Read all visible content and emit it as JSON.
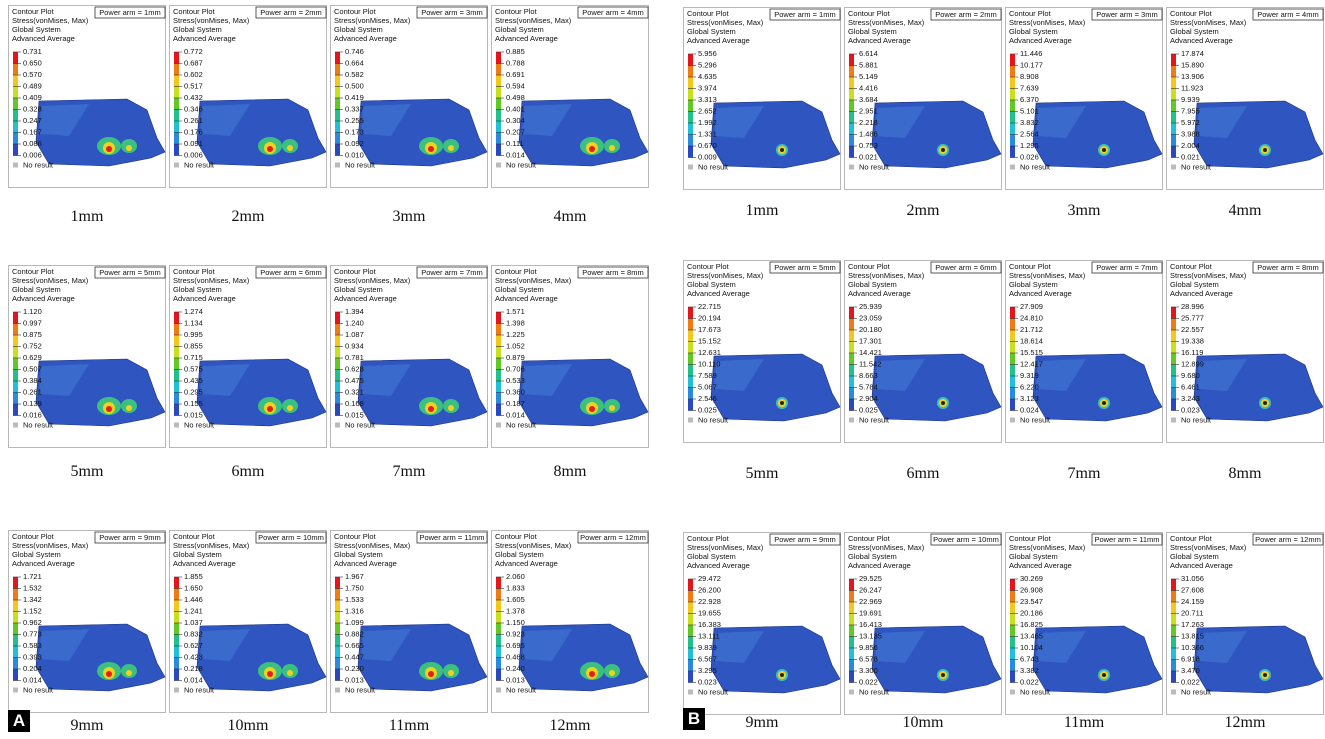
{
  "panels": [
    {
      "label": "A",
      "plots": [
        {
          "title": "Contour Plot",
          "quantity": "Stress(vonMises, Max)",
          "system": "Global System",
          "average": "Advanced Average",
          "power_arm": "Power arm = 1mm",
          "legend": [
            "0.731",
            "0.650",
            "0.570",
            "0.489",
            "0.409",
            "0.328",
            "0.247",
            "0.167",
            "0.086",
            "0.006"
          ],
          "no_result": "No result",
          "caption": "1mm"
        },
        {
          "title": "Contour Plot",
          "quantity": "Stress(vonMises, Max)",
          "system": "Global System",
          "average": "Advanced Average",
          "power_arm": "Power arm = 2mm",
          "legend": [
            "0.772",
            "0.687",
            "0.602",
            "0.517",
            "0.432",
            "0.346",
            "0.261",
            "0.176",
            "0.091",
            "0.006"
          ],
          "no_result": "No result",
          "caption": "2mm"
        },
        {
          "title": "Contour Plot",
          "quantity": "Stress(vonMises, Max)",
          "system": "Global System",
          "average": "Advanced Average",
          "power_arm": "Power arm = 3mm",
          "legend": [
            "0.746",
            "0.664",
            "0.582",
            "0.500",
            "0.419",
            "0.337",
            "0.255",
            "0.173",
            "0.092",
            "0.010"
          ],
          "no_result": "No result",
          "caption": "3mm"
        },
        {
          "title": "Contour Plot",
          "quantity": "Stress(vonMises, Max)",
          "system": "Global System",
          "average": "Advanced Average",
          "power_arm": "Power arm = 4mm",
          "legend": [
            "0.885",
            "0.788",
            "0.691",
            "0.594",
            "0.498",
            "0.401",
            "0.304",
            "0.207",
            "0.111",
            "0.014"
          ],
          "no_result": "No result",
          "caption": "4mm"
        },
        {
          "title": "Contour Plot",
          "quantity": "Stress(vonMises, Max)",
          "system": "Global System",
          "average": "Advanced Average",
          "power_arm": "Power arm = 5mm",
          "legend": [
            "1.120",
            "0.997",
            "0.875",
            "0.752",
            "0.629",
            "0.507",
            "0.384",
            "0.261",
            "0.139",
            "0.016"
          ],
          "no_result": "No result",
          "caption": "5mm"
        },
        {
          "title": "Contour Plot",
          "quantity": "Stress(vonMises, Max)",
          "system": "Global System",
          "average": "Advanced Average",
          "power_arm": "Power arm = 6mm",
          "legend": [
            "1.274",
            "1.134",
            "0.995",
            "0.855",
            "0.715",
            "0.575",
            "0.435",
            "0.295",
            "0.155",
            "0.015"
          ],
          "no_result": "No result",
          "caption": "6mm"
        },
        {
          "title": "Contour Plot",
          "quantity": "Stress(vonMises, Max)",
          "system": "Global System",
          "average": "Advanced Average",
          "power_arm": "Power arm = 7mm",
          "legend": [
            "1.394",
            "1.240",
            "1.087",
            "0.934",
            "0.781",
            "0.628",
            "0.475",
            "0.321",
            "0.168",
            "0.015"
          ],
          "no_result": "No result",
          "caption": "7mm"
        },
        {
          "title": "Contour Plot",
          "quantity": "Stress(vonMises, Max)",
          "system": "Global System",
          "average": "Advanced Average",
          "power_arm": "Power arm = 8mm",
          "legend": [
            "1.571",
            "1.398",
            "1.225",
            "1.052",
            "0.879",
            "0.706",
            "0.533",
            "0.360",
            "0.187",
            "0.014"
          ],
          "no_result": "No result",
          "caption": "8mm"
        },
        {
          "title": "Contour Plot",
          "quantity": "Stress(vonMises, Max)",
          "system": "Global System",
          "average": "Advanced Average",
          "power_arm": "Power arm = 9mm",
          "legend": [
            "1.721",
            "1.532",
            "1.342",
            "1.152",
            "0.962",
            "0.773",
            "0.583",
            "0.393",
            "0.204",
            "0.014"
          ],
          "no_result": "No result",
          "caption": "9mm"
        },
        {
          "title": "Contour Plot",
          "quantity": "Stress(vonMises, Max)",
          "system": "Global System",
          "average": "Advanced Average",
          "power_arm": "Power arm = 10mm",
          "legend": [
            "1.855",
            "1.650",
            "1.446",
            "1.241",
            "1.037",
            "0.832",
            "0.627",
            "0.423",
            "0.218",
            "0.014"
          ],
          "no_result": "No result",
          "caption": "10mm"
        },
        {
          "title": "Contour Plot",
          "quantity": "Stress(vonMises, Max)",
          "system": "Global System",
          "average": "Advanced Average",
          "power_arm": "Power arm = 11mm",
          "legend": [
            "1.967",
            "1.750",
            "1.533",
            "1.316",
            "1.099",
            "0.882",
            "0.665",
            "0.447",
            "0.230",
            "0.013"
          ],
          "no_result": "No result",
          "caption": "11mm"
        },
        {
          "title": "Contour Plot",
          "quantity": "Stress(vonMises, Max)",
          "system": "Global System",
          "average": "Advanced Average",
          "power_arm": "Power arm = 12mm",
          "legend": [
            "2.060",
            "1.833",
            "1.605",
            "1.378",
            "1.150",
            "0.923",
            "0.695",
            "0.468",
            "0.240",
            "0.013"
          ],
          "no_result": "No result",
          "caption": "12mm"
        }
      ]
    },
    {
      "label": "B",
      "plots": [
        {
          "title": "Contour Plot",
          "quantity": "Stress(vonMises, Max)",
          "system": "Global System",
          "average": "Advanced Average",
          "power_arm": "Power arm = 1mm",
          "legend": [
            "5.956",
            "5.296",
            "4.635",
            "3.974",
            "3.313",
            "2.652",
            "1.992",
            "1.331",
            "0.670",
            "0.009"
          ],
          "no_result": "No result",
          "caption": "1mm"
        },
        {
          "title": "Contour Plot",
          "quantity": "Stress(vonMises, Max)",
          "system": "Global System",
          "average": "Advanced Average",
          "power_arm": "Power arm = 2mm",
          "legend": [
            "6.614",
            "5.881",
            "5.149",
            "4.416",
            "3.684",
            "2.951",
            "2.218",
            "1.486",
            "0.753",
            "0.021"
          ],
          "no_result": "No result",
          "caption": "2mm"
        },
        {
          "title": "Contour Plot",
          "quantity": "Stress(vonMises, Max)",
          "system": "Global System",
          "average": "Advanced Average",
          "power_arm": "Power arm = 3mm",
          "legend": [
            "11.446",
            "10.177",
            "8.908",
            "7.639",
            "6.370",
            "5.101",
            "3.832",
            "2.564",
            "1.295",
            "0.026"
          ],
          "no_result": "No result",
          "caption": "3mm"
        },
        {
          "title": "Contour Plot",
          "quantity": "Stress(vonMises, Max)",
          "system": "Global System",
          "average": "Advanced Average",
          "power_arm": "Power arm = 4mm",
          "legend": [
            "17.874",
            "15.890",
            "13.906",
            "11.923",
            "9.939",
            "7.955",
            "5.972",
            "3.988",
            "2.004",
            "0.021"
          ],
          "no_result": "No result",
          "caption": "4mm"
        },
        {
          "title": "Contour Plot",
          "quantity": "Stress(vonMises, Max)",
          "system": "Global System",
          "average": "Advanced Average",
          "power_arm": "Power arm = 5mm",
          "legend": [
            "22.715",
            "20.194",
            "17.673",
            "15.152",
            "12.631",
            "10.110",
            "7.589",
            "5.067",
            "2.546",
            "0.025"
          ],
          "no_result": "No result",
          "caption": "5mm"
        },
        {
          "title": "Contour Plot",
          "quantity": "Stress(vonMises, Max)",
          "system": "Global System",
          "average": "Advanced Average",
          "power_arm": "Power arm = 6mm",
          "legend": [
            "25.939",
            "23.059",
            "20.180",
            "17.301",
            "14.421",
            "11.542",
            "8.663",
            "5.784",
            "2.904",
            "0.025"
          ],
          "no_result": "No result",
          "caption": "6mm"
        },
        {
          "title": "Contour Plot",
          "quantity": "Stress(vonMises, Max)",
          "system": "Global System",
          "average": "Advanced Average",
          "power_arm": "Power arm = 7mm",
          "legend": [
            "27.909",
            "24.810",
            "21.712",
            "18.614",
            "15.515",
            "12.417",
            "9.319",
            "6.220",
            "3.123",
            "0.024"
          ],
          "no_result": "No result",
          "caption": "7mm"
        },
        {
          "title": "Contour Plot",
          "quantity": "Stress(vonMises, Max)",
          "system": "Global System",
          "average": "Advanced Average",
          "power_arm": "Power arm = 8mm",
          "legend": [
            "28.996",
            "25.777",
            "22.557",
            "19.338",
            "16.119",
            "12.899",
            "9.680",
            "6.461",
            "3.243",
            "0.023"
          ],
          "no_result": "No result",
          "caption": "8mm"
        },
        {
          "title": "Contour Plot",
          "quantity": "Stress(vonMises, Max)",
          "system": "Global System",
          "average": "Advanced Average",
          "power_arm": "Power arm = 9mm",
          "legend": [
            "29.472",
            "26.200",
            "22.928",
            "19.655",
            "16.383",
            "13.111",
            "9.839",
            "6.567",
            "3.295",
            "0.023"
          ],
          "no_result": "No result",
          "caption": "9mm"
        },
        {
          "title": "Contour Plot",
          "quantity": "Stress(vonMises, Max)",
          "system": "Global System",
          "average": "Advanced Average",
          "power_arm": "Power arm = 10mm",
          "legend": [
            "29.525",
            "26.247",
            "22.969",
            "19.691",
            "16.413",
            "13.135",
            "9.856",
            "6.578",
            "3.300",
            "0.022"
          ],
          "no_result": "No result",
          "caption": "10mm"
        },
        {
          "title": "Contour Plot",
          "quantity": "Stress(vonMises, Max)",
          "system": "Global System",
          "average": "Advanced Average",
          "power_arm": "Power arm = 11mm",
          "legend": [
            "30.269",
            "26.908",
            "23.547",
            "20.186",
            "16.825",
            "13.465",
            "10.104",
            "6.743",
            "3.382",
            "0.022"
          ],
          "no_result": "No result",
          "caption": "11mm"
        },
        {
          "title": "Contour Plot",
          "quantity": "Stress(vonMises, Max)",
          "system": "Global System",
          "average": "Advanced Average",
          "power_arm": "Power arm = 12mm",
          "legend": [
            "31.056",
            "27.608",
            "24.159",
            "20.711",
            "17.263",
            "13.815",
            "10.366",
            "6.918",
            "3.470",
            "0.022"
          ],
          "no_result": "No result",
          "caption": "12mm"
        }
      ]
    }
  ]
}
